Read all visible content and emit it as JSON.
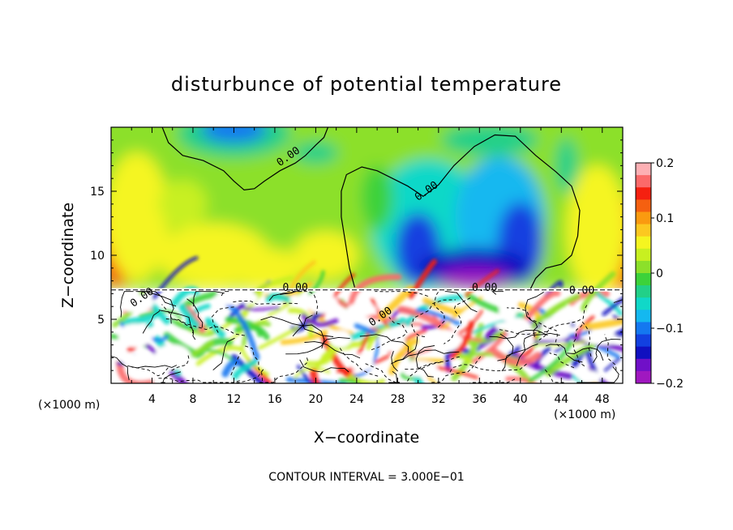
{
  "chart_data": {
    "type": "heatmap",
    "title": "disturbunce of potential temperature",
    "xlabel": "X−coordinate",
    "ylabel": "Z−coordinate",
    "x_unit_left": "(×1000 m)",
    "x_unit_right": "(×1000 m)",
    "xlim": [
      0,
      50
    ],
    "ylim": [
      0,
      20
    ],
    "x_ticks": [
      4,
      8,
      12,
      16,
      20,
      24,
      28,
      32,
      36,
      40,
      44,
      48
    ],
    "x_tick_labels": [
      "4",
      "8",
      "12",
      "16",
      "20",
      "24",
      "28",
      "32",
      "36",
      "40",
      "44",
      "48"
    ],
    "y_ticks": [
      5,
      10,
      15
    ],
    "y_tick_labels": [
      "5",
      "10",
      "15"
    ],
    "contour_interval_label": "CONTOUR INTERVAL = 3.000E−01",
    "contour_labels": [
      {
        "text": "0.00",
        "x": 17.5,
        "y": 17.5
      },
      {
        "text": "0.00",
        "x": 31.0,
        "y": 14.8
      },
      {
        "text": "0.00",
        "x": 18.0,
        "y": 7.2
      },
      {
        "text": "0.00",
        "x": 36.5,
        "y": 7.2
      },
      {
        "text": "0.00",
        "x": 46.0,
        "y": 7.0
      },
      {
        "text": "0.00",
        "x": 3.2,
        "y": 6.5
      },
      {
        "text": "0.00",
        "x": 26.5,
        "y": 5.0
      }
    ],
    "colorbar": {
      "range": [
        -0.2,
        0.2
      ],
      "tick_values": [
        0.2,
        0.1,
        0,
        -0.1,
        -0.2
      ],
      "tick_labels": [
        "0.2",
        "0.1",
        "0",
        "−0.1",
        "−0.2"
      ],
      "colors": [
        "#fdb0b4",
        "#fb6a6a",
        "#f52010",
        "#f56010",
        "#fa9a10",
        "#fcc820",
        "#f5f520",
        "#c8f020",
        "#8ce02a",
        "#3cd23a",
        "#22d088",
        "#10d8c8",
        "#14b8f0",
        "#1478f0",
        "#1240e0",
        "#1010c0",
        "#7010c8",
        "#a018c0"
      ]
    },
    "upper_layer": {
      "z_range": [
        7.3,
        20
      ],
      "description_values": [
        {
          "x": 2.0,
          "z": 10.5,
          "value": 0.16
        },
        {
          "x": 49.0,
          "z": 10.5,
          "value": 0.16
        },
        {
          "x": 13.0,
          "z": 10.0,
          "value": 0.06
        },
        {
          "x": 12.0,
          "z": 19.0,
          "value": -0.09
        },
        {
          "x": 35.5,
          "z": 8.5,
          "value": -0.2
        },
        {
          "x": 30.5,
          "z": 10.5,
          "value": -0.14
        },
        {
          "x": 40.5,
          "z": 11.0,
          "value": -0.14
        },
        {
          "x": 37.0,
          "z": 17.0,
          "value": -0.05
        }
      ]
    },
    "boundary_z": 7.3
  }
}
